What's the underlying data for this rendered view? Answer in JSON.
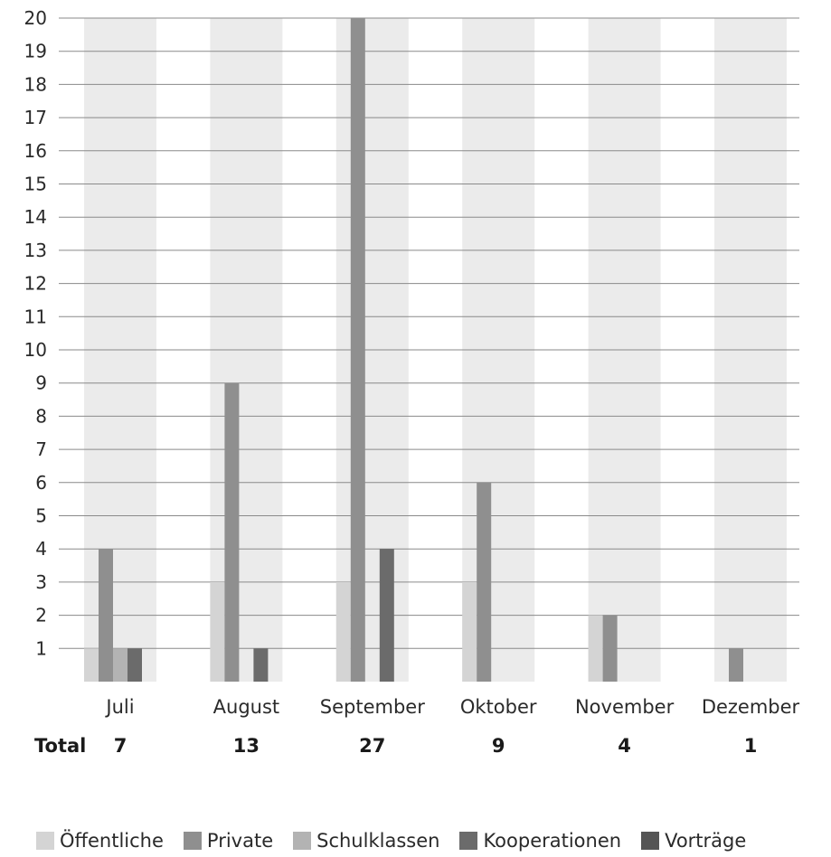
{
  "chart_data": {
    "type": "bar",
    "categories": [
      "Juli",
      "August",
      "September",
      "Oktober",
      "November",
      "Dezember"
    ],
    "series": [
      {
        "name": "Öffentliche",
        "color": "#d4d4d4",
        "values": [
          1,
          3,
          3,
          3,
          2,
          0
        ]
      },
      {
        "name": "Private",
        "color": "#8f8f8f",
        "values": [
          4,
          9,
          20,
          6,
          2,
          1
        ]
      },
      {
        "name": "Schulklassen",
        "color": "#b3b3b3",
        "values": [
          1,
          0,
          0,
          0,
          0,
          0
        ]
      },
      {
        "name": "Kooperationen",
        "color": "#6b6b6b",
        "values": [
          1,
          1,
          4,
          0,
          0,
          0
        ]
      },
      {
        "name": "Vorträge",
        "color": "#555555",
        "values": [
          0,
          0,
          0,
          0,
          0,
          0
        ]
      }
    ],
    "ylim": [
      0,
      20
    ],
    "yticks": [
      1,
      2,
      3,
      4,
      5,
      6,
      7,
      8,
      9,
      10,
      11,
      12,
      13,
      14,
      15,
      16,
      17,
      18,
      19,
      20
    ],
    "grid": true,
    "column_band_color": "#ebebeb",
    "gridline_color": "#8a8a8a",
    "totals_label": "Total",
    "totals": [
      "7",
      "13",
      "27",
      "9",
      "4",
      "1"
    ],
    "legend_position": "bottom"
  }
}
